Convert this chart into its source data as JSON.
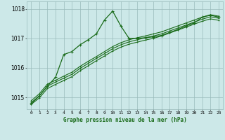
{
  "x": [
    0,
    1,
    2,
    3,
    4,
    5,
    6,
    7,
    8,
    9,
    10,
    11,
    12,
    13,
    14,
    15,
    16,
    17,
    18,
    19,
    20,
    21,
    22,
    23
  ],
  "line_spiky": [
    1014.78,
    1015.05,
    1015.38,
    1015.68,
    1016.45,
    1016.55,
    1016.78,
    1016.95,
    1017.15,
    1017.62,
    1017.92,
    1017.42,
    1017.0,
    1017.0,
    1017.02,
    1017.05,
    1017.1,
    1017.2,
    1017.3,
    1017.42,
    1017.52,
    1017.72,
    1017.78,
    1017.72
  ],
  "line_smooth1": [
    1014.88,
    1015.12,
    1015.45,
    1015.58,
    1015.72,
    1015.85,
    1016.05,
    1016.22,
    1016.38,
    1016.55,
    1016.72,
    1016.85,
    1016.95,
    1017.02,
    1017.08,
    1017.15,
    1017.22,
    1017.32,
    1017.42,
    1017.52,
    1017.62,
    1017.72,
    1017.8,
    1017.75
  ],
  "line_smooth2": [
    1014.82,
    1015.05,
    1015.38,
    1015.52,
    1015.65,
    1015.78,
    1015.98,
    1016.15,
    1016.32,
    1016.48,
    1016.65,
    1016.78,
    1016.88,
    1016.95,
    1017.02,
    1017.08,
    1017.15,
    1017.25,
    1017.35,
    1017.45,
    1017.55,
    1017.65,
    1017.73,
    1017.68
  ],
  "line_smooth3": [
    1014.76,
    1014.98,
    1015.3,
    1015.44,
    1015.57,
    1015.7,
    1015.9,
    1016.07,
    1016.24,
    1016.4,
    1016.57,
    1016.7,
    1016.8,
    1016.87,
    1016.94,
    1017.0,
    1017.08,
    1017.18,
    1017.28,
    1017.38,
    1017.48,
    1017.58,
    1017.66,
    1017.61
  ],
  "bg_color": "#cce8e8",
  "grid_color": "#99bbbb",
  "line_color": "#1a6b1a",
  "ylim_min": 1014.6,
  "ylim_max": 1018.25,
  "yticks": [
    1015,
    1016,
    1017,
    1018
  ],
  "xlabel": "Graphe pression niveau de la mer (hPa)"
}
